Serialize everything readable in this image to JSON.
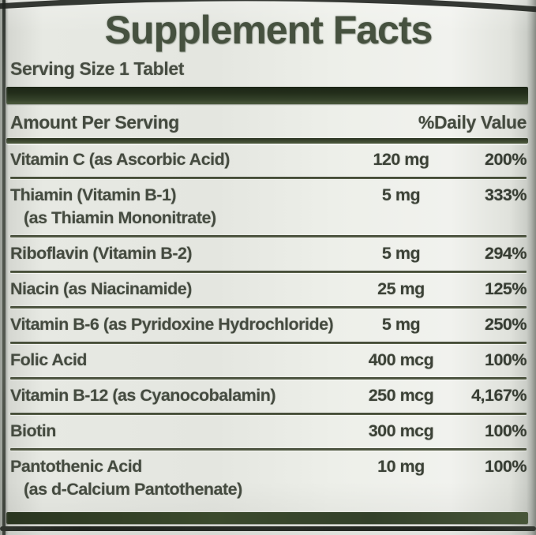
{
  "title": "Supplement Facts",
  "serving_size": "Serving Size 1 Tablet",
  "columns": {
    "amount_header": "Amount Per Serving",
    "dv_header": "%Daily Value"
  },
  "rows": [
    {
      "name": "Vitamin C (as Ascorbic Acid)",
      "sub": "",
      "amount": "120 mg",
      "dv": "200%"
    },
    {
      "name": "Thiamin (Vitamin B-1)",
      "sub": "(as Thiamin Mononitrate)",
      "amount": "5 mg",
      "dv": "333%"
    },
    {
      "name": "Riboflavin (Vitamin B-2)",
      "sub": "",
      "amount": "5 mg",
      "dv": "294%"
    },
    {
      "name": "Niacin (as Niacinamide)",
      "sub": "",
      "amount": "25 mg",
      "dv": "125%"
    },
    {
      "name": "Vitamin B-6 (as Pyridoxine Hydrochloride)",
      "sub": "",
      "amount": "5 mg",
      "dv": "250%"
    },
    {
      "name": "Folic Acid",
      "sub": "",
      "amount": "400 mcg",
      "dv": "100%"
    },
    {
      "name": "Vitamin B-12 (as Cyanocobalamin)",
      "sub": "",
      "amount": "250 mcg",
      "dv": "4,167%"
    },
    {
      "name": "Biotin",
      "sub": "",
      "amount": "300 mcg",
      "dv": "100%"
    },
    {
      "name": "Pantothenic Acid",
      "sub": "(as d-Calcium Pantothenate)",
      "amount": "10 mg",
      "dv": "100%"
    }
  ],
  "colors": {
    "label_background": "#e8eae4",
    "divider_dark_green": "#2b3721",
    "text_dark": "#454b40",
    "frame_edge": "#2e332d"
  }
}
